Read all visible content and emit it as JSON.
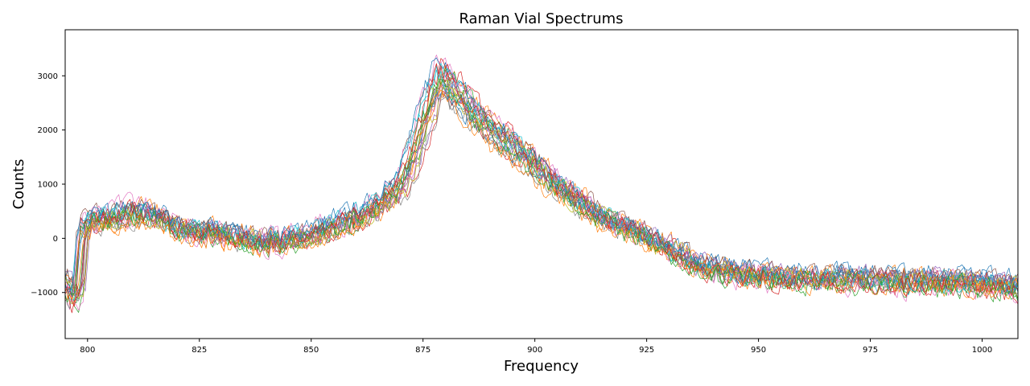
{
  "chart_data": {
    "type": "line",
    "title": "Raman Vial Spectrums",
    "xlabel": "Frequency",
    "ylabel": "Counts",
    "xlim": [
      795,
      1008
    ],
    "ylim": [
      -1850,
      3850
    ],
    "x_ticks": [
      800,
      825,
      850,
      875,
      900,
      925,
      950,
      975,
      1000
    ],
    "x_tick_labels": [
      "800",
      "825",
      "850",
      "875",
      "900",
      "925",
      "950",
      "975",
      "1000"
    ],
    "y_ticks": [
      -1000,
      0,
      1000,
      2000,
      3000
    ],
    "y_tick_labels": [
      "−1000",
      "0",
      "1000",
      "2000",
      "3000"
    ],
    "grid": false,
    "legend": "none",
    "series_count": 24,
    "x_range": [
      795,
      1008
    ],
    "x_step": 0.5,
    "mean_profile": [
      [
        795,
        -800
      ],
      [
        797,
        -1150
      ],
      [
        798,
        -1000
      ],
      [
        799,
        200
      ],
      [
        800,
        250
      ],
      [
        803,
        400
      ],
      [
        806,
        350
      ],
      [
        810,
        500
      ],
      [
        815,
        450
      ],
      [
        820,
        200
      ],
      [
        825,
        100
      ],
      [
        830,
        100
      ],
      [
        840,
        -100
      ],
      [
        850,
        50
      ],
      [
        860,
        400
      ],
      [
        865,
        600
      ],
      [
        870,
        1000
      ],
      [
        873,
        1600
      ],
      [
        876,
        2400
      ],
      [
        879,
        3000
      ],
      [
        882,
        2800
      ],
      [
        886,
        2400
      ],
      [
        890,
        2050
      ],
      [
        895,
        1750
      ],
      [
        900,
        1400
      ],
      [
        905,
        1000
      ],
      [
        910,
        700
      ],
      [
        915,
        400
      ],
      [
        920,
        200
      ],
      [
        925,
        50
      ],
      [
        930,
        -200
      ],
      [
        935,
        -450
      ],
      [
        940,
        -600
      ],
      [
        950,
        -700
      ],
      [
        960,
        -750
      ],
      [
        970,
        -750
      ],
      [
        980,
        -800
      ],
      [
        990,
        -800
      ],
      [
        1000,
        -850
      ],
      [
        1008,
        -900
      ]
    ],
    "series_colors": [
      "#1f77b4",
      "#ff7f0e",
      "#2ca02c",
      "#d62728",
      "#9467bd",
      "#8c564b",
      "#e377c2",
      "#7f7f7f",
      "#bcbd22",
      "#17becf",
      "#1f77b4",
      "#ff7f0e",
      "#2ca02c",
      "#d62728",
      "#9467bd",
      "#8c564b",
      "#e377c2",
      "#7f7f7f",
      "#bcbd22",
      "#17becf",
      "#1f77b4",
      "#ff7f0e",
      "#2ca02c",
      "#d62728"
    ]
  }
}
